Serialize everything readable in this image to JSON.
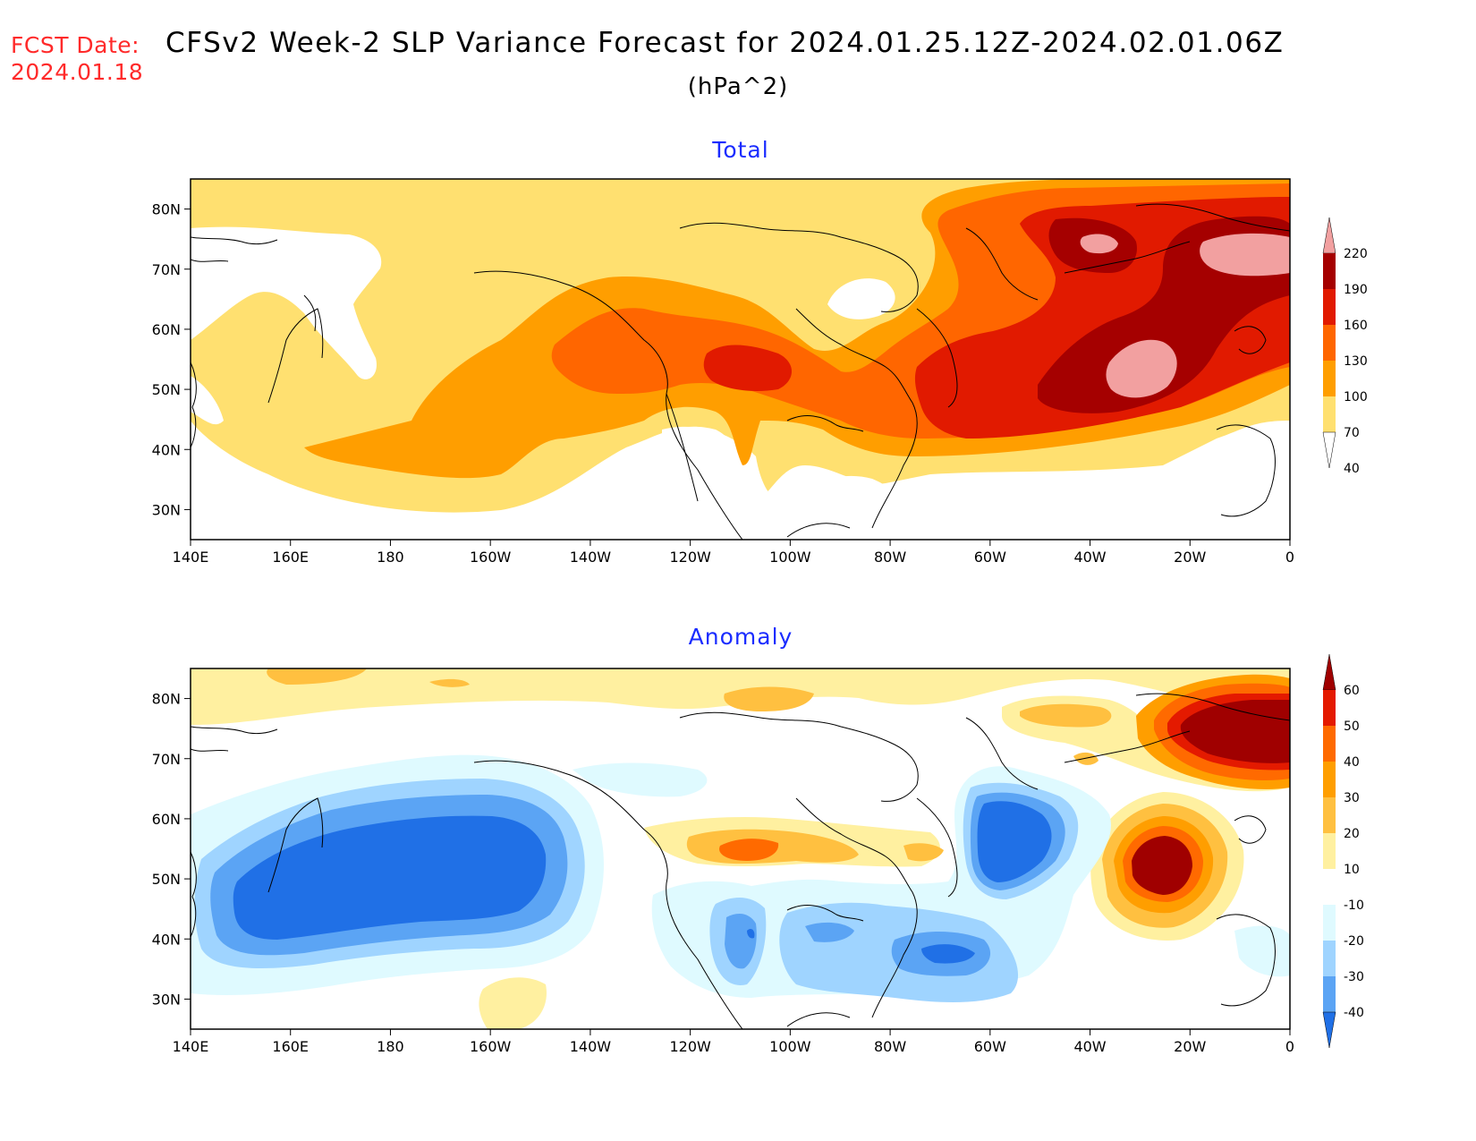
{
  "header": {
    "fcst_label": "FCST Date:",
    "fcst_date": "2024.01.18",
    "title": "CFSv2 Week-2 SLP Variance Forecast for 2024.01.25.12Z-2024.02.01.06Z",
    "units": "(hPa^2)"
  },
  "axes": {
    "lat_labels": [
      "80N",
      "70N",
      "60N",
      "50N",
      "40N",
      "30N"
    ],
    "lat_values": [
      80,
      70,
      60,
      50,
      40,
      30
    ],
    "lon_labels": [
      "140E",
      "160E",
      "180",
      "160W",
      "140W",
      "120W",
      "100W",
      "80W",
      "60W",
      "40W",
      "20W",
      "0"
    ],
    "lat_range": [
      25,
      85
    ]
  },
  "panels": [
    {
      "id": "total",
      "title": "Total",
      "colorbar": {
        "labels": [
          "220",
          "190",
          "160",
          "130",
          "100",
          "70",
          "40"
        ],
        "colors": [
          "#f2a0a0",
          "#a50000",
          "#e11a00",
          "#ff6600",
          "#ff9e00",
          "#ffe070"
        ]
      }
    },
    {
      "id": "anomaly",
      "title": "Anomaly",
      "colorbar": {
        "labels": [
          "60",
          "50",
          "40",
          "30",
          "20",
          "10",
          "-10",
          "-20",
          "-30",
          "-40"
        ],
        "colors": [
          "#a00000",
          "#e41a00",
          "#ff6a00",
          "#ff9e00",
          "#ffc040",
          "#fff0a0",
          "#ffffff",
          "#dffaff",
          "#9fd4ff",
          "#5ba4f4",
          "#2070e6"
        ]
      }
    }
  ]
}
